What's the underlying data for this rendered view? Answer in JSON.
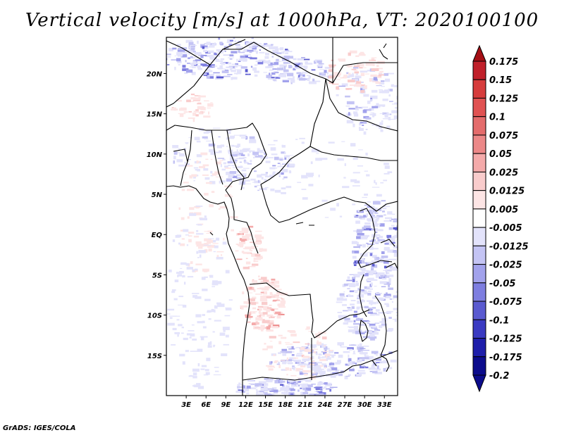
{
  "title": "Vertical velocity [m/s] at 1000hPa, VT: 2020100100",
  "credit": "GrADS: IGES/COLA",
  "chart_data": {
    "type": "heatmap",
    "title": "Vertical velocity [m/s] at 1000hPa, VT: 2020100100",
    "field": "vertical velocity",
    "units": "m/s",
    "level": "1000hPa",
    "valid_time": "2020100100",
    "x_ticks": [
      "3E",
      "6E",
      "9E",
      "12E",
      "15E",
      "18E",
      "21E",
      "24E",
      "27E",
      "30E",
      "33E"
    ],
    "x_tick_values": [
      3,
      6,
      9,
      12,
      15,
      18,
      21,
      24,
      27,
      30,
      33
    ],
    "y_ticks": [
      "20N",
      "15N",
      "10N",
      "5N",
      "EQ",
      "5S",
      "10S",
      "15S"
    ],
    "y_tick_values": [
      20,
      15,
      10,
      5,
      0,
      -5,
      -10,
      -15
    ],
    "xlim": [
      0,
      35
    ],
    "ylim": [
      -20,
      24.5
    ],
    "colorbar": {
      "levels": [
        "0.175",
        "0.15",
        "0.125",
        "0.1",
        "0.075",
        "0.05",
        "0.025",
        "0.0125",
        "0.005",
        "-0.005",
        "-0.0125",
        "-0.025",
        "-0.05",
        "-0.075",
        "-0.1",
        "-0.125",
        "-0.175",
        "-0.2"
      ],
      "colors": [
        "#a50f15",
        "#c0202a",
        "#d63c3c",
        "#e05252",
        "#e46c6c",
        "#ec8888",
        "#f4aaaa",
        "#f9cccc",
        "#fde5e5",
        "#ffffff",
        "#e3e3fb",
        "#c4c4f4",
        "#a2a2ec",
        "#7e7ee0",
        "#5a5ad0",
        "#3a3ac2",
        "#1e1eaa",
        "#0c0c8c"
      ]
    },
    "features": {
      "negative_regions": [
        "Sahel north of 17N near 4E-13E",
        "Lake Victoria / Great Rift region 29E-33E",
        "southern band near 18S-20S",
        "scattered over Cameroon, Gabon and Congo"
      ],
      "positive_regions": [
        "Angola coast 11E-17E near 8S-12S",
        "Gulf of Guinea coast",
        "scattered over Chad and Sudan"
      ]
    }
  }
}
